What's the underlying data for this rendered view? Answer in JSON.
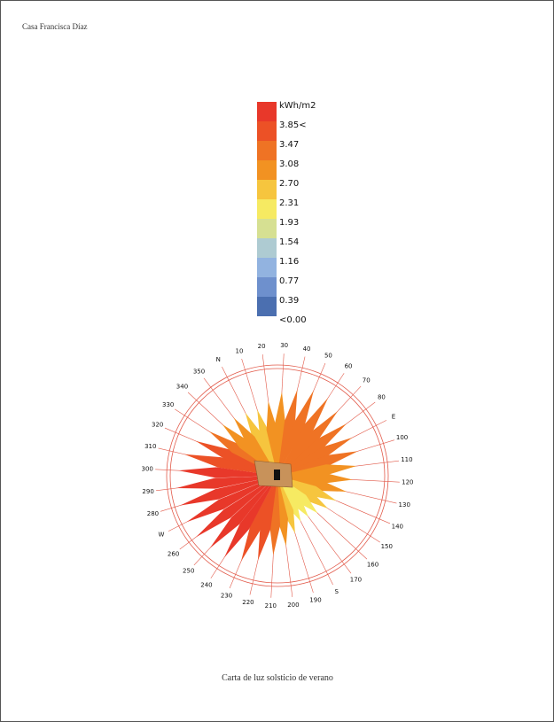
{
  "header": {
    "title": "Casa Francisca Díaz"
  },
  "legend": {
    "labels": [
      "kWh/m2",
      "3.85<",
      "3.47",
      "3.08",
      "2.70",
      "2.31",
      "1.93",
      "1.54",
      "1.16",
      "0.77",
      "0.39",
      "<0.00"
    ],
    "colors": [
      "#e8382a",
      "#ec5126",
      "#ef7324",
      "#f29222",
      "#f6c53e",
      "#f6ea62",
      "#d6e092",
      "#aecbd2",
      "#92b3e0",
      "#6e90cd",
      "#4b6fb0"
    ]
  },
  "rose": {
    "directions": [
      "N",
      "10",
      "20",
      "30",
      "40",
      "50",
      "60",
      "70",
      "80",
      "E",
      "100",
      "110",
      "120",
      "130",
      "140",
      "150",
      "160",
      "170",
      "S",
      "190",
      "200",
      "210",
      "220",
      "230",
      "240",
      "250",
      "260",
      "W",
      "280",
      "290",
      "300",
      "310",
      "320",
      "330",
      "340",
      "350"
    ],
    "petals": [
      {
        "length": 80,
        "color": "#f6c53e"
      },
      {
        "length": 78,
        "color": "#f6c53e"
      },
      {
        "length": 85,
        "color": "#f29222"
      },
      {
        "length": 95,
        "color": "#f29222"
      },
      {
        "length": 100,
        "color": "#ef7324"
      },
      {
        "length": 105,
        "color": "#ef7324"
      },
      {
        "length": 105,
        "color": "#ef7324"
      },
      {
        "length": 100,
        "color": "#ef7324"
      },
      {
        "length": 98,
        "color": "#ef7324"
      },
      {
        "length": 95,
        "color": "#ef7324"
      },
      {
        "length": 95,
        "color": "#ef7324"
      },
      {
        "length": 90,
        "color": "#f29222"
      },
      {
        "length": 85,
        "color": "#f29222"
      },
      {
        "length": 80,
        "color": "#f29222"
      },
      {
        "length": 72,
        "color": "#f6c53e"
      },
      {
        "length": 68,
        "color": "#f6c53e"
      },
      {
        "length": 62,
        "color": "#f6ea62"
      },
      {
        "length": 58,
        "color": "#f6ea62"
      },
      {
        "length": 58,
        "color": "#f6ea62"
      },
      {
        "length": 68,
        "color": "#f6c53e"
      },
      {
        "length": 80,
        "color": "#f29222"
      },
      {
        "length": 90,
        "color": "#ef7324"
      },
      {
        "length": 98,
        "color": "#ec5126"
      },
      {
        "length": 105,
        "color": "#ec5126"
      },
      {
        "length": 110,
        "color": "#e8382a"
      },
      {
        "length": 112,
        "color": "#e8382a"
      },
      {
        "length": 115,
        "color": "#e8382a"
      },
      {
        "length": 115,
        "color": "#e8382a"
      },
      {
        "length": 115,
        "color": "#e8382a"
      },
      {
        "length": 115,
        "color": "#e8382a"
      },
      {
        "length": 112,
        "color": "#e8382a"
      },
      {
        "length": 108,
        "color": "#ec5126"
      },
      {
        "length": 100,
        "color": "#ec5126"
      },
      {
        "length": 92,
        "color": "#ef7324"
      },
      {
        "length": 85,
        "color": "#f29222"
      },
      {
        "length": 82,
        "color": "#f29222"
      }
    ]
  },
  "caption": "Carta de luz solsticio de verano"
}
